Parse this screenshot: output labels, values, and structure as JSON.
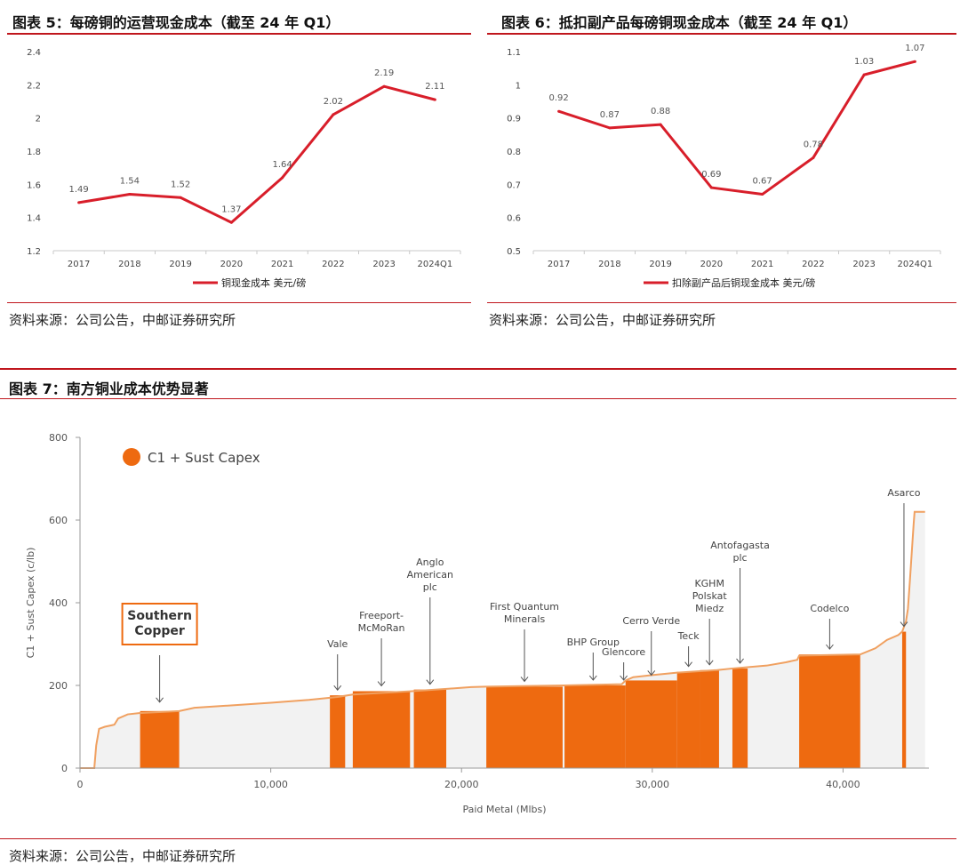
{
  "figures": {
    "fig5": {
      "title": "图表 5：每磅铜的运营现金成本（截至 24 年 Q1）",
      "source": "资料来源：公司公告，中邮证券研究所"
    },
    "fig6": {
      "title": "图表 6：抵扣副产品每磅铜现金成本（截至 24 年 Q1）",
      "source": "资料来源：公司公告，中邮证券研究所"
    },
    "fig7": {
      "title": "图表 7：南方铜业成本优势显著",
      "source": "资料来源：公司公告，中邮证券研究所"
    }
  },
  "colors": {
    "accent_red": "#c0161d",
    "line_red": "#d81e2a",
    "bar_orange": "#ee6a10",
    "curve_orange": "#f0a060",
    "fill_gray": "#f2f2f2"
  },
  "chart_data": [
    {
      "type": "line",
      "categories": [
        "2017",
        "2018",
        "2019",
        "2020",
        "2021",
        "2022",
        "2023",
        "2024Q1"
      ],
      "series": [
        {
          "name": "铜现金成本 美元/磅",
          "values": [
            1.49,
            1.54,
            1.52,
            1.37,
            1.64,
            2.02,
            2.19,
            2.11
          ]
        }
      ],
      "data_labels": [
        "1.49",
        "1.54",
        "1.52",
        "1.37",
        "1.64",
        "2.02",
        "2.19",
        "2.11"
      ],
      "y_ticks": [
        "1.2",
        "1.4",
        "1.6",
        "1.8",
        "2",
        "2.2",
        "2.4"
      ],
      "ylim": [
        1.2,
        2.4
      ],
      "legend_position": "bottom",
      "grid": false
    },
    {
      "type": "line",
      "categories": [
        "2017",
        "2018",
        "2019",
        "2020",
        "2021",
        "2022",
        "2023",
        "2024Q1"
      ],
      "series": [
        {
          "name": "扣除副产品后铜现金成本 美元/磅",
          "values": [
            0.92,
            0.87,
            0.88,
            0.69,
            0.67,
            0.78,
            1.03,
            1.07
          ]
        }
      ],
      "data_labels": [
        "0.92",
        "0.87",
        "0.88",
        "0.69",
        "0.67",
        "0.78",
        "1.03",
        "1.07"
      ],
      "y_ticks": [
        "0.5",
        "0.6",
        "0.7",
        "0.8",
        "0.9",
        "1",
        "1.1"
      ],
      "ylim": [
        0.5,
        1.1
      ],
      "legend_position": "bottom",
      "grid": false
    },
    {
      "type": "area",
      "legend": "C1 + Sust Capex",
      "legend_position": "top-left",
      "xlabel": "Paid Metal (Mlbs)",
      "ylabel": "C1 + Sust Capex (c/lb)",
      "xlim": [
        0,
        44500
      ],
      "ylim": [
        0,
        800
      ],
      "x_ticks": [
        {
          "v": 0,
          "label": "0"
        },
        {
          "v": 10000,
          "label": "10,000"
        },
        {
          "v": 20000,
          "label": "20,000"
        },
        {
          "v": 30000,
          "label": "30,000"
        },
        {
          "v": 40000,
          "label": "40,000"
        }
      ],
      "y_ticks": [
        {
          "v": 0,
          "label": "0"
        },
        {
          "v": 200,
          "label": "200"
        },
        {
          "v": 400,
          "label": "400"
        },
        {
          "v": 600,
          "label": "600"
        },
        {
          "v": 800,
          "label": "800"
        }
      ],
      "cost_curve": [
        [
          0,
          0
        ],
        [
          750,
          0
        ],
        [
          850,
          55
        ],
        [
          1000,
          95
        ],
        [
          1300,
          100
        ],
        [
          1800,
          105
        ],
        [
          2000,
          120
        ],
        [
          2500,
          130
        ],
        [
          3100,
          133
        ],
        [
          5200,
          138
        ],
        [
          6000,
          146
        ],
        [
          8000,
          152
        ],
        [
          10000,
          158
        ],
        [
          12000,
          165
        ],
        [
          13500,
          172
        ],
        [
          14300,
          178
        ],
        [
          17400,
          186
        ],
        [
          19300,
          192
        ],
        [
          20500,
          196
        ],
        [
          21300,
          197
        ],
        [
          25400,
          200
        ],
        [
          28400,
          203
        ],
        [
          28600,
          212
        ],
        [
          29000,
          220
        ],
        [
          30000,
          225
        ],
        [
          31300,
          231
        ],
        [
          33400,
          237
        ],
        [
          34200,
          241
        ],
        [
          36000,
          248
        ],
        [
          37000,
          256
        ],
        [
          37600,
          262
        ],
        [
          37700,
          272
        ],
        [
          40900,
          275
        ],
        [
          41700,
          290
        ],
        [
          42300,
          310
        ],
        [
          42900,
          322
        ],
        [
          43100,
          330
        ],
        [
          43300,
          355
        ],
        [
          43400,
          385
        ],
        [
          43500,
          450
        ],
        [
          43600,
          520
        ],
        [
          43700,
          590
        ],
        [
          43750,
          620
        ],
        [
          44300,
          620
        ]
      ],
      "highlighted_companies": [
        {
          "name": "Southern Copper",
          "x0": 3150,
          "x1": 5200,
          "value": 138,
          "callout": "Southern\nCopper",
          "boxed": true
        },
        {
          "name": "Vale",
          "x0": 13100,
          "x1": 13900,
          "value": 176,
          "callout": "Vale"
        },
        {
          "name": "Freeport-McMoRan",
          "x0": 14300,
          "x1": 17300,
          "value": 186,
          "callout": "Freeport-\nMcMoRan"
        },
        {
          "name": "Anglo American plc",
          "x0": 17500,
          "x1": 19200,
          "value": 190,
          "callout": "Anglo\nAmerican\nplc"
        },
        {
          "name": "First Quantum Minerals",
          "x0": 21300,
          "x1": 25300,
          "value": 197,
          "callout": "First Quantum\nMinerals"
        },
        {
          "name": "BHP Group",
          "x0": 25400,
          "x1": 28400,
          "value": 200,
          "callout": "BHP Group"
        },
        {
          "name": "Glencore",
          "x0": 28400,
          "x1": 28600,
          "value": 200,
          "callout": "Glencore"
        },
        {
          "name": "Cerro Verde",
          "x0": 28600,
          "x1": 31300,
          "value": 212,
          "callout": "Cerro Verde"
        },
        {
          "name": "Teck",
          "x0": 31300,
          "x1": 32500,
          "value": 233,
          "callout": "Teck"
        },
        {
          "name": "KGHM Polskat Miedz",
          "x0": 32500,
          "x1": 33500,
          "value": 237,
          "callout": "KGHM\nPolskat\nMiedz"
        },
        {
          "name": "Antofagasta plc",
          "x0": 34200,
          "x1": 35000,
          "value": 241,
          "callout": "Antofagasta\nplc"
        },
        {
          "name": "Codelco",
          "x0": 37700,
          "x1": 40900,
          "value": 275,
          "callout": "Codelco"
        },
        {
          "name": "Asarco",
          "x0": 43100,
          "x1": 43300,
          "value": 330,
          "callout": "Asarco"
        }
      ]
    }
  ]
}
